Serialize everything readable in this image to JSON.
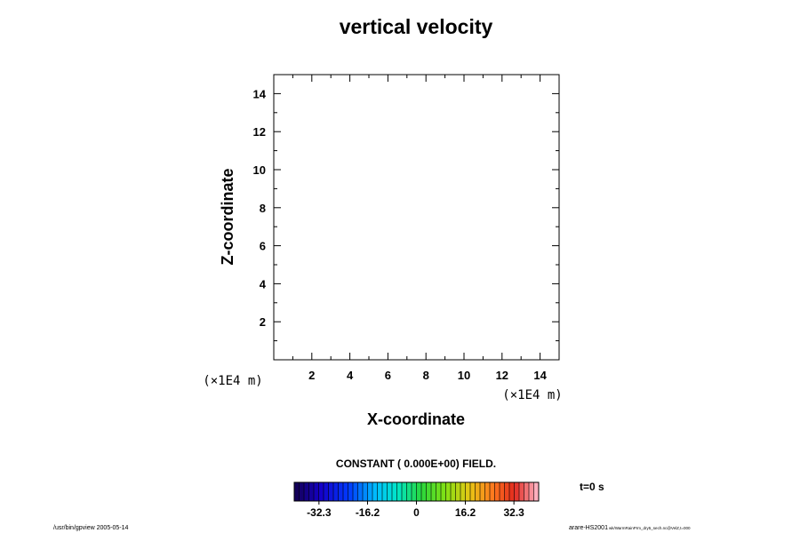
{
  "chart_data": {
    "type": "heatmap",
    "title": "vertical velocity",
    "xlabel": "X-coordinate",
    "ylabel": "Z-coordinate",
    "xlim": [
      0,
      15
    ],
    "ylim": [
      0,
      15
    ],
    "x_ticks": [
      2,
      4,
      6,
      8,
      10,
      12,
      14
    ],
    "y_ticks": [
      2,
      4,
      6,
      8,
      10,
      12,
      14
    ],
    "x_unit_label": "(×1E4 m)",
    "y_unit_label": "(×1E4 m)",
    "field_message": "CONSTANT ( 0.000E+00) FIELD.",
    "time_label": "t=0 s",
    "colorbar": {
      "range": [
        -40.5,
        40.5
      ],
      "num_levels": 50,
      "tick_values": [
        -32.3,
        -16.2,
        0,
        16.2,
        32.3
      ],
      "tick_labels": [
        "-32.3",
        "-16.2",
        "0",
        "16.2",
        "32.3"
      ]
    }
  },
  "footer": {
    "left": "/usr/bin/gpview 2005-05-14",
    "right_main": "arare-HS2001",
    "right_small": "wk/WarmRainPrm_dry5_sech.nc@VelZ,t=000"
  }
}
